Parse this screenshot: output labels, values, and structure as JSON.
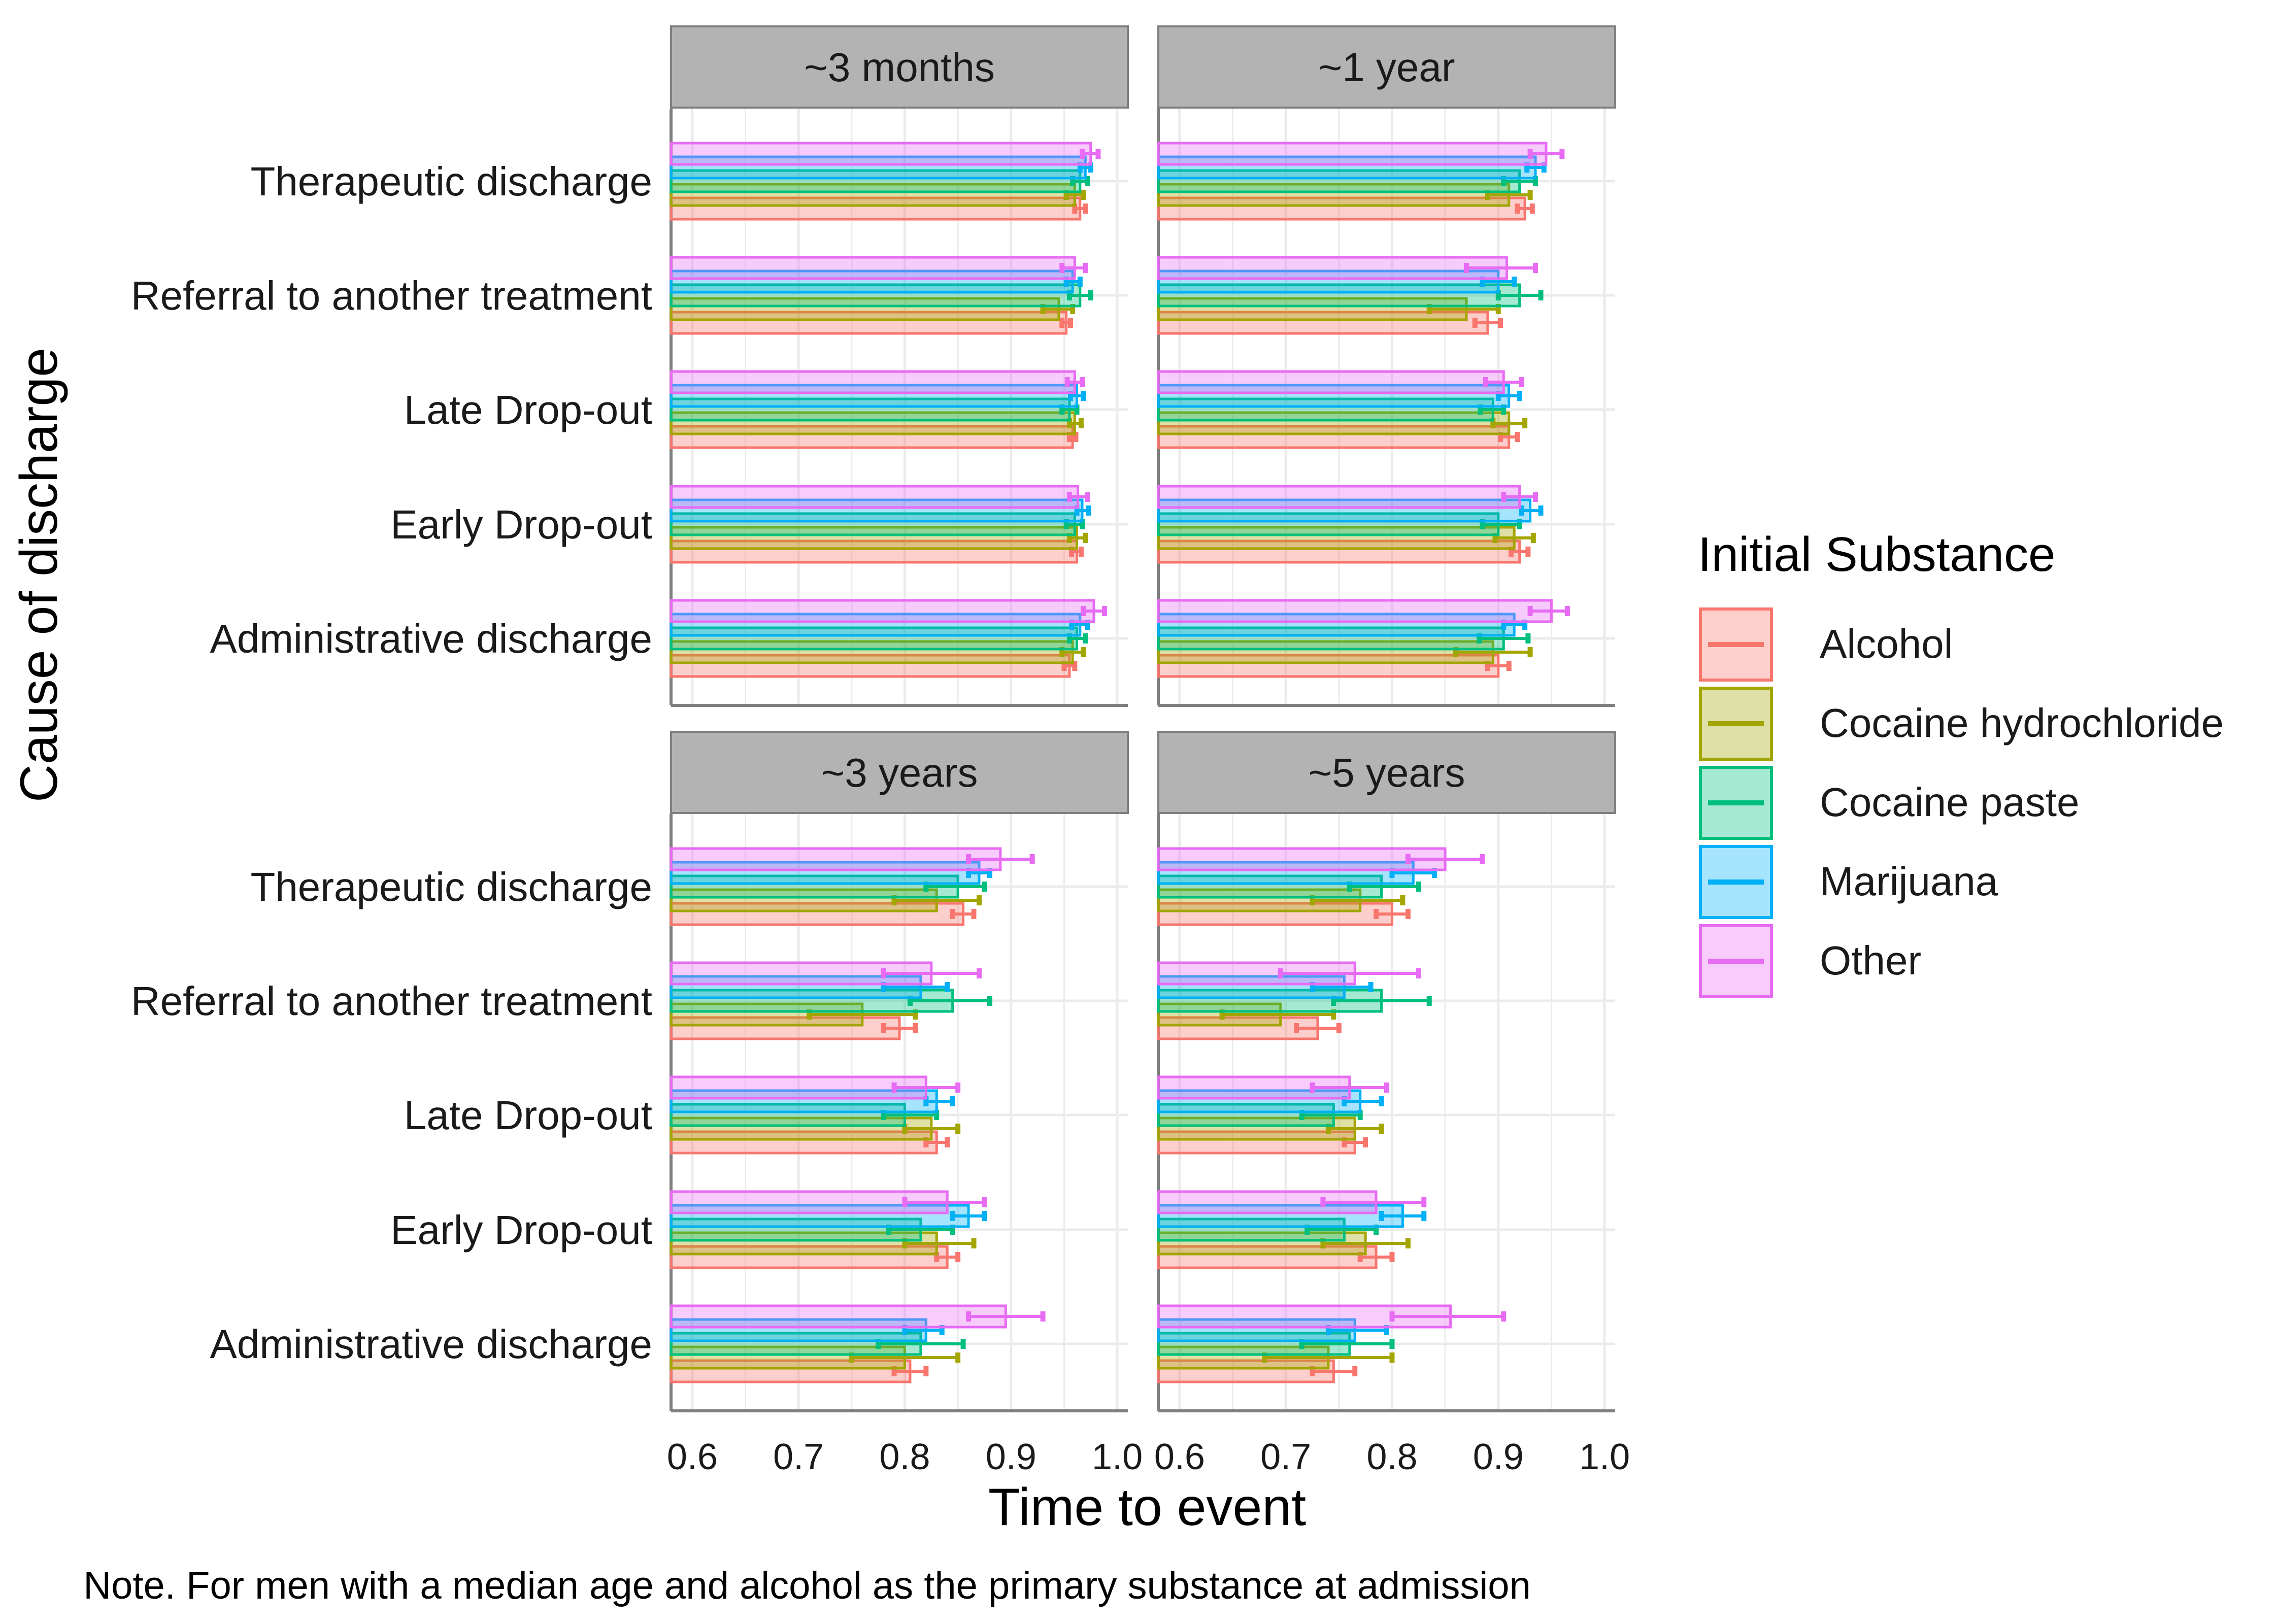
{
  "chart_data": {
    "type": "bar",
    "orientation": "horizontal",
    "ylabel": "Cause of discharge",
    "xlabel": "Time to event",
    "note": "Note. For men with a median age and alcohol as the primary substance at admission",
    "xlim": [
      0.58,
      1.01
    ],
    "x_ticks": [
      0.6,
      0.7,
      0.8,
      0.9,
      1.0
    ],
    "x_tick_labels": [
      "0.6",
      "0.7",
      "0.8",
      "0.9",
      "1.0"
    ],
    "grid": true,
    "legend": {
      "title": "Initial Substance",
      "position": "right",
      "entries": [
        "Alcohol",
        "Cocaine hydrochloride",
        "Cocaine paste",
        "Marijuana",
        "Other"
      ]
    },
    "colors": {
      "Alcohol": "#F8766D",
      "Cocaine hydrochloride": "#A3A500",
      "Cocaine paste": "#00BF7D",
      "Marijuana": "#00B0F6",
      "Other": "#E76BF3"
    },
    "categories": [
      "Therapeutic discharge",
      "Referral to another treatment",
      "Late Drop-out",
      "Early Drop-out",
      "Administrative discharge"
    ],
    "panels": [
      {
        "title": "~3 months",
        "series": [
          {
            "name": "Alcohol",
            "values": [
              0.965,
              0.952,
              0.958,
              0.962,
              0.955
            ],
            "ci": [
              [
                0.96,
                0.97
              ],
              [
                0.948,
                0.956
              ],
              [
                0.955,
                0.961
              ],
              [
                0.957,
                0.966
              ],
              [
                0.95,
                0.96
              ]
            ]
          },
          {
            "name": "Cocaine hydrochloride",
            "values": [
              0.96,
              0.945,
              0.96,
              0.962,
              0.958
            ],
            "ci": [
              [
                0.952,
                0.968
              ],
              [
                0.93,
                0.958
              ],
              [
                0.955,
                0.966
              ],
              [
                0.955,
                0.97
              ],
              [
                0.948,
                0.968
              ]
            ]
          },
          {
            "name": "Cocaine paste",
            "values": [
              0.965,
              0.965,
              0.955,
              0.96,
              0.962
            ],
            "ci": [
              [
                0.958,
                0.972
              ],
              [
                0.955,
                0.975
              ],
              [
                0.948,
                0.962
              ],
              [
                0.952,
                0.967
              ],
              [
                0.955,
                0.97
              ]
            ]
          },
          {
            "name": "Marijuana",
            "values": [
              0.97,
              0.958,
              0.962,
              0.967,
              0.965
            ],
            "ci": [
              [
                0.965,
                0.975
              ],
              [
                0.952,
                0.965
              ],
              [
                0.956,
                0.968
              ],
              [
                0.962,
                0.973
              ],
              [
                0.957,
                0.972
              ]
            ]
          },
          {
            "name": "Other",
            "values": [
              0.975,
              0.96,
              0.96,
              0.963,
              0.978
            ],
            "ci": [
              [
                0.967,
                0.982
              ],
              [
                0.948,
                0.97
              ],
              [
                0.953,
                0.967
              ],
              [
                0.955,
                0.972
              ],
              [
                0.968,
                0.988
              ]
            ]
          }
        ]
      },
      {
        "title": "~1 year",
        "series": [
          {
            "name": "Alcohol",
            "values": [
              0.925,
              0.89,
              0.91,
              0.92,
              0.9
            ],
            "ci": [
              [
                0.918,
                0.932
              ],
              [
                0.878,
                0.902
              ],
              [
                0.902,
                0.918
              ],
              [
                0.912,
                0.928
              ],
              [
                0.89,
                0.91
              ]
            ]
          },
          {
            "name": "Cocaine hydrochloride",
            "values": [
              0.91,
              0.87,
              0.91,
              0.915,
              0.895
            ],
            "ci": [
              [
                0.89,
                0.93
              ],
              [
                0.835,
                0.9
              ],
              [
                0.895,
                0.925
              ],
              [
                0.897,
                0.933
              ],
              [
                0.86,
                0.93
              ]
            ]
          },
          {
            "name": "Cocaine paste",
            "values": [
              0.92,
              0.92,
              0.895,
              0.9,
              0.905
            ],
            "ci": [
              [
                0.905,
                0.935
              ],
              [
                0.9,
                0.94
              ],
              [
                0.883,
                0.905
              ],
              [
                0.885,
                0.92
              ],
              [
                0.882,
                0.928
              ]
            ]
          },
          {
            "name": "Marijuana",
            "values": [
              0.935,
              0.9,
              0.91,
              0.93,
              0.915
            ],
            "ci": [
              [
                0.927,
                0.943
              ],
              [
                0.885,
                0.915
              ],
              [
                0.9,
                0.92
              ],
              [
                0.922,
                0.94
              ],
              [
                0.905,
                0.925
              ]
            ]
          },
          {
            "name": "Other",
            "values": [
              0.945,
              0.908,
              0.905,
              0.92,
              0.95
            ],
            "ci": [
              [
                0.93,
                0.96
              ],
              [
                0.87,
                0.935
              ],
              [
                0.888,
                0.922
              ],
              [
                0.905,
                0.935
              ],
              [
                0.93,
                0.965
              ]
            ]
          }
        ]
      },
      {
        "title": "~3 years",
        "series": [
          {
            "name": "Alcohol",
            "values": [
              0.855,
              0.795,
              0.83,
              0.84,
              0.805
            ],
            "ci": [
              [
                0.845,
                0.865
              ],
              [
                0.78,
                0.81
              ],
              [
                0.82,
                0.84
              ],
              [
                0.83,
                0.85
              ],
              [
                0.79,
                0.82
              ]
            ]
          },
          {
            "name": "Cocaine hydrochloride",
            "values": [
              0.83,
              0.76,
              0.825,
              0.83,
              0.8
            ],
            "ci": [
              [
                0.79,
                0.87
              ],
              [
                0.71,
                0.81
              ],
              [
                0.8,
                0.85
              ],
              [
                0.8,
                0.865
              ],
              [
                0.75,
                0.85
              ]
            ]
          },
          {
            "name": "Cocaine paste",
            "values": [
              0.85,
              0.845,
              0.8,
              0.815,
              0.815
            ],
            "ci": [
              [
                0.82,
                0.875
              ],
              [
                0.805,
                0.88
              ],
              [
                0.78,
                0.83
              ],
              [
                0.785,
                0.845
              ],
              [
                0.775,
                0.855
              ]
            ]
          },
          {
            "name": "Marijuana",
            "values": [
              0.87,
              0.815,
              0.83,
              0.86,
              0.82
            ],
            "ci": [
              [
                0.86,
                0.88
              ],
              [
                0.78,
                0.84
              ],
              [
                0.82,
                0.845
              ],
              [
                0.845,
                0.875
              ],
              [
                0.8,
                0.835
              ]
            ]
          },
          {
            "name": "Other",
            "values": [
              0.89,
              0.825,
              0.82,
              0.84,
              0.895
            ],
            "ci": [
              [
                0.86,
                0.92
              ],
              [
                0.78,
                0.87
              ],
              [
                0.79,
                0.85
              ],
              [
                0.8,
                0.875
              ],
              [
                0.86,
                0.93
              ]
            ]
          }
        ]
      },
      {
        "title": "~5 years",
        "series": [
          {
            "name": "Alcohol",
            "values": [
              0.8,
              0.73,
              0.765,
              0.785,
              0.745
            ],
            "ci": [
              [
                0.785,
                0.815
              ],
              [
                0.71,
                0.75
              ],
              [
                0.755,
                0.775
              ],
              [
                0.77,
                0.8
              ],
              [
                0.725,
                0.765
              ]
            ]
          },
          {
            "name": "Cocaine hydrochloride",
            "values": [
              0.77,
              0.695,
              0.765,
              0.775,
              0.74
            ],
            "ci": [
              [
                0.725,
                0.81
              ],
              [
                0.64,
                0.745
              ],
              [
                0.74,
                0.79
              ],
              [
                0.735,
                0.815
              ],
              [
                0.68,
                0.8
              ]
            ]
          },
          {
            "name": "Cocaine paste",
            "values": [
              0.79,
              0.79,
              0.745,
              0.755,
              0.76
            ],
            "ci": [
              [
                0.76,
                0.825
              ],
              [
                0.745,
                0.835
              ],
              [
                0.715,
                0.77
              ],
              [
                0.72,
                0.785
              ],
              [
                0.715,
                0.8
              ]
            ]
          },
          {
            "name": "Marijuana",
            "values": [
              0.82,
              0.755,
              0.77,
              0.81,
              0.765
            ],
            "ci": [
              [
                0.8,
                0.84
              ],
              [
                0.725,
                0.78
              ],
              [
                0.755,
                0.79
              ],
              [
                0.79,
                0.83
              ],
              [
                0.74,
                0.795
              ]
            ]
          },
          {
            "name": "Other",
            "values": [
              0.85,
              0.765,
              0.76,
              0.785,
              0.855
            ],
            "ci": [
              [
                0.815,
                0.885
              ],
              [
                0.695,
                0.825
              ],
              [
                0.725,
                0.795
              ],
              [
                0.735,
                0.83
              ],
              [
                0.8,
                0.905
              ]
            ]
          }
        ]
      }
    ]
  }
}
